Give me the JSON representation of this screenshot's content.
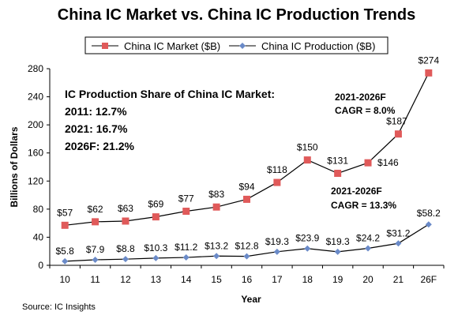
{
  "chart_data": {
    "type": "line",
    "title": "China IC Market vs. China IC Production Trends",
    "xlabel": "Year",
    "ylabel": "Billions of Dollars",
    "categories": [
      "10",
      "11",
      "12",
      "13",
      "14",
      "15",
      "16",
      "17",
      "18",
      "19",
      "20",
      "21",
      "26F"
    ],
    "ylim": [
      0,
      280
    ],
    "yticks": [
      0,
      40,
      80,
      120,
      160,
      200,
      240,
      280
    ],
    "series": [
      {
        "name": "China IC Market ($B)",
        "color": "#e05a5a",
        "line_color": "#000000",
        "marker": "square",
        "values": [
          57,
          62,
          63,
          69,
          77,
          83,
          94,
          118,
          150,
          131,
          146,
          187,
          274
        ],
        "labels": [
          "$57",
          "$62",
          "$63",
          "$69",
          "$77",
          "$83",
          "$94",
          "$118",
          "$150",
          "$131",
          "$146",
          "$187",
          "$274"
        ]
      },
      {
        "name": "China IC Production ($B)",
        "color": "#6a8ac8",
        "line_color": "#000000",
        "marker": "diamond",
        "values": [
          5.8,
          7.9,
          8.8,
          10.3,
          11.2,
          13.2,
          12.8,
          19.3,
          23.9,
          19.3,
          24.2,
          31.2,
          58.2
        ],
        "labels": [
          "$5.8",
          "$7.9",
          "$8.8",
          "$10.3",
          "$11.2",
          "$13.2",
          "$12.8",
          "$19.3",
          "$23.9",
          "$19.3",
          "$24.2",
          "$31.2",
          "$58.2"
        ]
      }
    ],
    "annotations": {
      "share_title": "IC Production Share of China IC Market:",
      "share_lines": [
        "2011: 12.7%",
        "2021: 16.7%",
        "2026F: 21.2%"
      ],
      "market_cagr": [
        "2021-2026F",
        "CAGR = 8.0%"
      ],
      "production_cagr": [
        "2021-2026F",
        "CAGR = 13.3%"
      ]
    },
    "grid": false,
    "legend_position": "top"
  },
  "source": "Source: IC Insights"
}
